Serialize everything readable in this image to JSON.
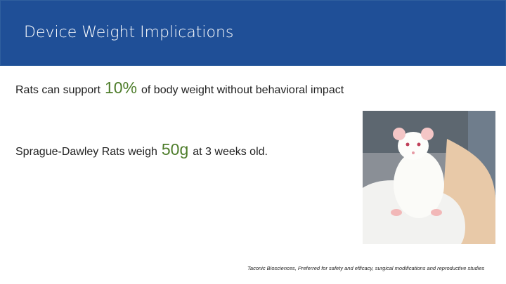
{
  "header": {
    "title": "Device Weight Implications"
  },
  "body": {
    "lines": [
      {
        "before": "Rats can support",
        "highlight": "10%",
        "after": "of body weight without behavioral impact"
      },
      {
        "before": "Sprague-Dawley Rats weigh",
        "highlight": "50g",
        "after": "at 3 weeks old."
      }
    ]
  },
  "caption": "Taconic Biosciences, Preferred for safety and efficacy, surgical modifications and reproductive studies"
}
